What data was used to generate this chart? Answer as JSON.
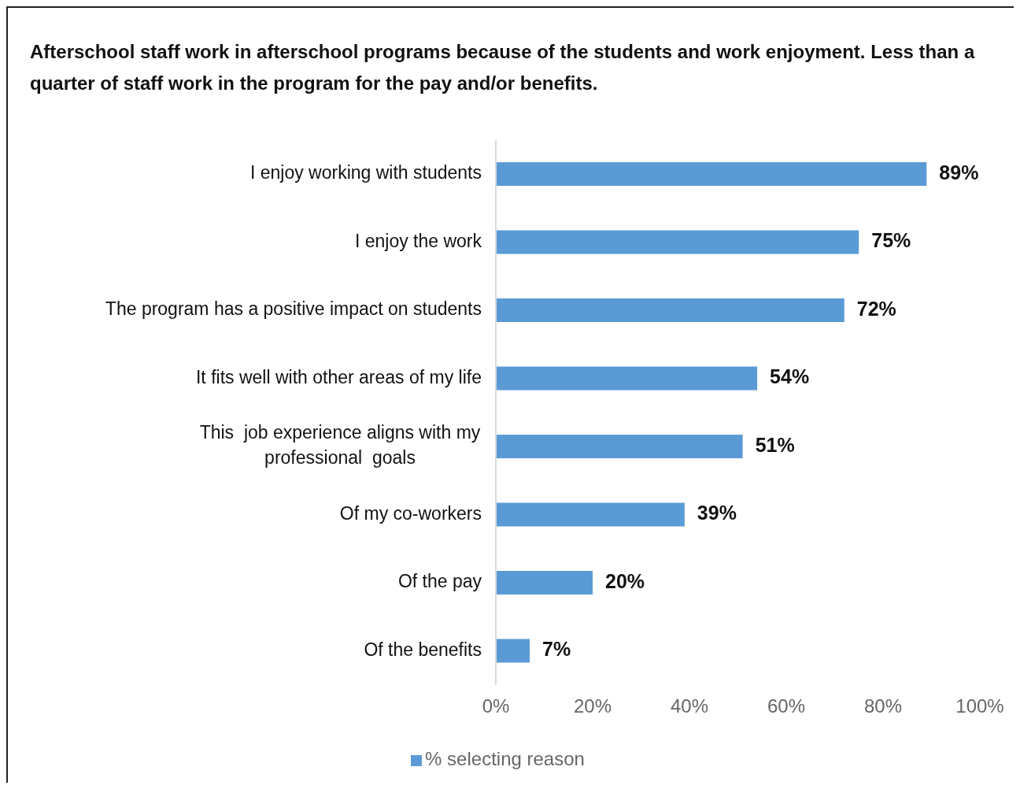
{
  "chart_data": {
    "type": "bar",
    "orientation": "horizontal",
    "title": "Afterschool staff work in afterschool programs because of the students and work enjoyment. Less than a quarter of staff work in the program for the pay and/or benefits.",
    "categories": [
      "I enjoy working with students",
      "I enjoy the work",
      "The program has a positive impact on students",
      "It fits well with other areas of my life",
      "This  job experience aligns with my professional  goals",
      "Of my co-workers",
      "Of the pay",
      "Of the benefits"
    ],
    "series": [
      {
        "name": "% selecting reason",
        "color": "#5b9bd5",
        "values": [
          89,
          75,
          72,
          54,
          51,
          39,
          20,
          7
        ],
        "value_labels": [
          "89%",
          "75%",
          "72%",
          "54%",
          "51%",
          "39%",
          "20%",
          "7%"
        ]
      }
    ],
    "xlim": [
      0,
      100
    ],
    "xticks": [
      {
        "value": 0,
        "label": "0%"
      },
      {
        "value": 20,
        "label": "20%"
      },
      {
        "value": 40,
        "label": "40%"
      },
      {
        "value": 60,
        "label": "60%"
      },
      {
        "value": 80,
        "label": "80%"
      },
      {
        "value": 100,
        "label": "100%"
      }
    ],
    "grid": false,
    "legend": "bottom"
  }
}
